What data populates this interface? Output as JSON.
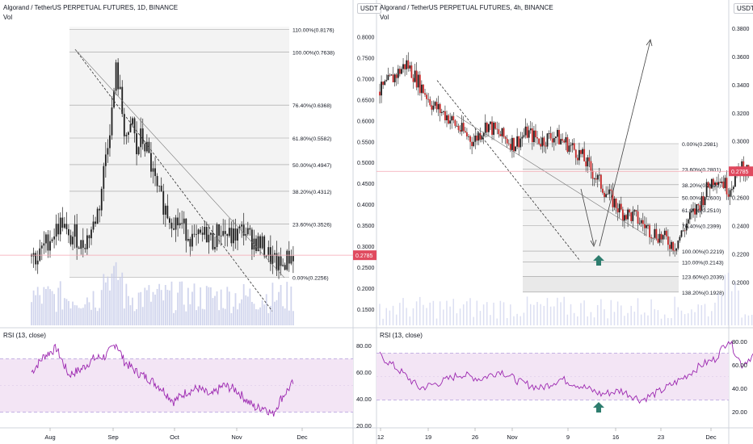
{
  "panels": [
    {
      "id": "left",
      "title": "Algorand / TetherUS PERPETUAL FUTURES, 1D, BINANCE",
      "vol_label": "Vol",
      "currency_button": "USDT",
      "price_axis_ticks": [
        "0.8000",
        "0.7500",
        "0.7000",
        "0.6500",
        "0.6000",
        "0.5500",
        "0.5000",
        "0.4500",
        "0.4000",
        "0.3500",
        "0.3000",
        "0.2500",
        "0.2000",
        "0.1500"
      ],
      "last_price": "0.2785",
      "x_ticks": [
        "Aug",
        "Sep",
        "Oct",
        "Nov",
        "Dec"
      ],
      "fib_levels": [
        {
          "label": "110.00%(0.8176)",
          "price": 0.8176
        },
        {
          "label": "100.00%(0.7638)",
          "price": 0.7638
        },
        {
          "label": "76.40%(0.6368)",
          "price": 0.6368
        },
        {
          "label": "61.80%(0.5582)",
          "price": 0.5582
        },
        {
          "label": "50.00%(0.4947)",
          "price": 0.4947
        },
        {
          "label": "38.20%(0.4312)",
          "price": 0.4312
        },
        {
          "label": "23.60%(0.3526)",
          "price": 0.3526
        },
        {
          "label": "0.00%(0.2256)",
          "price": 0.2256
        }
      ],
      "rsi_label": "RSI (13, close)",
      "rsi_ticks": [
        "80.00",
        "60.00",
        "40.00",
        "20.00"
      ]
    },
    {
      "id": "right",
      "title": "Algorand / TetherUS PERPETUAL FUTURES, 4h, BINANCE",
      "vol_label": "Vol",
      "currency_button": "USDT",
      "price_axis_ticks": [
        "0.3800",
        "0.3600",
        "0.3400",
        "0.3200",
        "0.3000",
        "0.2800",
        "0.2600",
        "0.2400",
        "0.2200",
        "0.2000"
      ],
      "last_price": "0.2785",
      "x_ticks": [
        "12",
        "19",
        "26",
        "Nov",
        "9",
        "16",
        "23",
        "Dec"
      ],
      "fib_levels": [
        {
          "label": "0.00%(0.2981)",
          "price": 0.2981
        },
        {
          "label": "23.60%(0.2801)",
          "price": 0.2801
        },
        {
          "label": "38.20%(0.2690)",
          "price": 0.269
        },
        {
          "label": "50.00%(0.2600)",
          "price": 0.26
        },
        {
          "label": "61.80%(0.2510)",
          "price": 0.251
        },
        {
          "label": "76.40%(0.2399)",
          "price": 0.2399
        },
        {
          "label": "100.00%(0.2219)",
          "price": 0.2219
        },
        {
          "label": "110.00%(0.2143)",
          "price": 0.2143
        },
        {
          "label": "123.60%(0.2039)",
          "price": 0.2039
        },
        {
          "label": "138.20%(0.1928)",
          "price": 0.1928
        }
      ],
      "rsi_label": "RSI (13, close)",
      "rsi_ticks": [
        "80.00",
        "60.00",
        "40.00",
        "20.00"
      ]
    }
  ],
  "colors": {
    "up": "#26a69a",
    "down": "#ef5350",
    "candle_body": "#1e1e1e",
    "price_tag": "#e04a5f",
    "rsi_line": "#9c27b0",
    "rsi_band": "#f3e5f5",
    "fib_zone": "#f3f3f3",
    "volume": "#c5cae9"
  },
  "chart_data": [
    {
      "type": "candlestick",
      "title": "Algorand / TetherUS PERPETUAL FUTURES, 1D, BINANCE",
      "x": [
        "Aug",
        "Sep",
        "Oct",
        "Nov",
        "Dec"
      ],
      "ylim": [
        0.125,
        0.825
      ],
      "close_path": [
        [
          -9,
          0.28
        ],
        [
          -6,
          0.27
        ],
        [
          -3,
          0.3
        ],
        [
          0,
          0.32
        ],
        [
          3,
          0.34
        ],
        [
          6,
          0.36
        ],
        [
          9,
          0.31
        ],
        [
          12,
          0.33
        ],
        [
          15,
          0.3
        ],
        [
          18,
          0.32
        ],
        [
          21,
          0.35
        ],
        [
          24,
          0.4
        ],
        [
          27,
          0.52
        ],
        [
          30,
          0.62
        ],
        [
          32,
          0.72
        ],
        [
          34,
          0.66
        ],
        [
          36,
          0.58
        ],
        [
          38,
          0.55
        ],
        [
          40,
          0.6
        ],
        [
          42,
          0.52
        ],
        [
          44,
          0.56
        ],
        [
          47,
          0.53
        ],
        [
          50,
          0.47
        ],
        [
          52,
          0.43
        ],
        [
          55,
          0.4
        ],
        [
          58,
          0.37
        ],
        [
          61,
          0.36
        ],
        [
          64,
          0.35
        ],
        [
          67,
          0.33
        ],
        [
          70,
          0.31
        ],
        [
          73,
          0.32
        ],
        [
          76,
          0.33
        ],
        [
          79,
          0.31
        ],
        [
          82,
          0.34
        ],
        [
          85,
          0.33
        ],
        [
          88,
          0.32
        ],
        [
          91,
          0.33
        ],
        [
          94,
          0.34
        ],
        [
          97,
          0.32
        ],
        [
          100,
          0.31
        ],
        [
          103,
          0.3
        ],
        [
          106,
          0.28
        ],
        [
          109,
          0.26
        ],
        [
          112,
          0.25
        ],
        [
          115,
          0.27
        ],
        [
          118,
          0.28
        ]
      ],
      "fib_retracement": {
        "0%": 0.2256,
        "100%": 0.7638
      },
      "last_price": 0.2785,
      "rsi": {
        "period": 13,
        "band": [
          30,
          70
        ],
        "ylim": [
          18,
          88
        ],
        "path": [
          [
            -9,
            60
          ],
          [
            -3,
            72
          ],
          [
            3,
            78
          ],
          [
            9,
            58
          ],
          [
            15,
            62
          ],
          [
            21,
            70
          ],
          [
            27,
            72
          ],
          [
            32,
            82
          ],
          [
            36,
            68
          ],
          [
            42,
            60
          ],
          [
            48,
            55
          ],
          [
            54,
            48
          ],
          [
            60,
            38
          ],
          [
            66,
            45
          ],
          [
            72,
            48
          ],
          [
            78,
            42
          ],
          [
            84,
            50
          ],
          [
            90,
            47
          ],
          [
            96,
            38
          ],
          [
            100,
            33
          ],
          [
            104,
            34
          ],
          [
            108,
            28
          ],
          [
            112,
            40
          ],
          [
            118,
            52
          ]
        ]
      }
    },
    {
      "type": "candlestick",
      "title": "Algorand / TetherUS PERPETUAL FUTURES, 4h, BINANCE",
      "x": [
        "12",
        "19",
        "26",
        "Nov",
        "9",
        "16",
        "23",
        "Dec"
      ],
      "ylim": [
        0.188,
        0.388
      ],
      "close_path": [
        [
          0,
          0.335
        ],
        [
          2,
          0.345
        ],
        [
          4,
          0.355
        ],
        [
          6,
          0.34
        ],
        [
          8,
          0.325
        ],
        [
          10,
          0.318
        ],
        [
          12,
          0.308
        ],
        [
          14,
          0.3
        ],
        [
          16,
          0.312
        ],
        [
          18,
          0.304
        ],
        [
          20,
          0.298
        ],
        [
          22,
          0.306
        ],
        [
          24,
          0.3
        ],
        [
          26,
          0.304
        ],
        [
          28,
          0.298
        ],
        [
          30,
          0.29
        ],
        [
          32,
          0.276
        ],
        [
          34,
          0.262
        ],
        [
          36,
          0.25
        ],
        [
          38,
          0.246
        ],
        [
          40,
          0.238
        ],
        [
          42,
          0.232
        ],
        [
          44,
          0.226
        ],
        [
          45,
          0.234
        ],
        [
          46,
          0.244
        ],
        [
          47,
          0.25
        ],
        [
          48,
          0.258
        ],
        [
          49,
          0.268
        ],
        [
          50,
          0.275
        ],
        [
          51,
          0.272
        ],
        [
          52,
          0.266
        ],
        [
          53,
          0.274
        ],
        [
          54,
          0.282
        ],
        [
          55,
          0.278
        ]
      ],
      "fib_retracement": {
        "0%": 0.2981,
        "100%": 0.2219
      },
      "last_price": 0.2785,
      "rsi": {
        "period": 13,
        "band": [
          30,
          70
        ],
        "ylim": [
          16,
          88
        ],
        "path": [
          [
            0,
            68
          ],
          [
            3,
            55
          ],
          [
            6,
            40
          ],
          [
            9,
            45
          ],
          [
            12,
            52
          ],
          [
            15,
            48
          ],
          [
            18,
            55
          ],
          [
            21,
            45
          ],
          [
            24,
            40
          ],
          [
            27,
            48
          ],
          [
            30,
            42
          ],
          [
            33,
            35
          ],
          [
            36,
            38
          ],
          [
            39,
            30
          ],
          [
            42,
            38
          ],
          [
            45,
            48
          ],
          [
            48,
            60
          ],
          [
            50,
            65
          ],
          [
            52,
            82
          ],
          [
            54,
            60
          ],
          [
            56,
            70
          ],
          [
            58,
            60
          ],
          [
            60,
            65
          ],
          [
            62,
            70
          ],
          [
            64,
            60
          ]
        ]
      }
    }
  ]
}
